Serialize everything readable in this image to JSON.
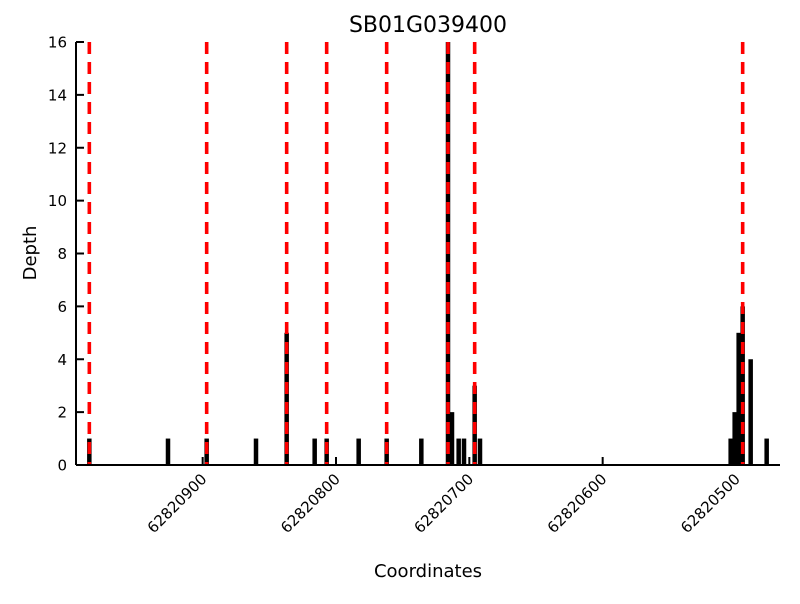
{
  "chart_data": {
    "type": "bar",
    "title": "SB01G039400",
    "xlabel": "Coordinates",
    "ylabel": "Depth",
    "x_axis_inverted": true,
    "xlim": [
      62820995,
      62820467
    ],
    "ylim": [
      0,
      16
    ],
    "x_ticks": [
      62820900,
      62820800,
      62820700,
      62820600,
      62820500
    ],
    "y_ticks": [
      0,
      2,
      4,
      6,
      8,
      10,
      12,
      14,
      16
    ],
    "grid": false,
    "legend": "none",
    "bars": [
      {
        "x": 62820985,
        "depth": 1
      },
      {
        "x": 62820926,
        "depth": 1
      },
      {
        "x": 62820897,
        "depth": 1
      },
      {
        "x": 62820860,
        "depth": 1
      },
      {
        "x": 62820837,
        "depth": 5
      },
      {
        "x": 62820816,
        "depth": 1
      },
      {
        "x": 62820807,
        "depth": 1
      },
      {
        "x": 62820783,
        "depth": 1
      },
      {
        "x": 62820762,
        "depth": 1
      },
      {
        "x": 62820736,
        "depth": 1
      },
      {
        "x": 62820716,
        "depth": 16
      },
      {
        "x": 62820713,
        "depth": 2
      },
      {
        "x": 62820708,
        "depth": 1
      },
      {
        "x": 62820704,
        "depth": 1
      },
      {
        "x": 62820696,
        "depth": 3
      },
      {
        "x": 62820692,
        "depth": 1
      },
      {
        "x": 62820504,
        "depth": 1
      },
      {
        "x": 62820501,
        "depth": 2
      },
      {
        "x": 62820498,
        "depth": 5
      },
      {
        "x": 62820495,
        "depth": 6
      },
      {
        "x": 62820489,
        "depth": 4
      },
      {
        "x": 62820477,
        "depth": 1
      }
    ],
    "red_dashed_lines": [
      62820985,
      62820897,
      62820837,
      62820807,
      62820762,
      62820716,
      62820696,
      62820495
    ],
    "colors": {
      "bar": "#000000",
      "dashed_line": "#ff0000",
      "axis": "#000000",
      "background": "#ffffff"
    }
  }
}
